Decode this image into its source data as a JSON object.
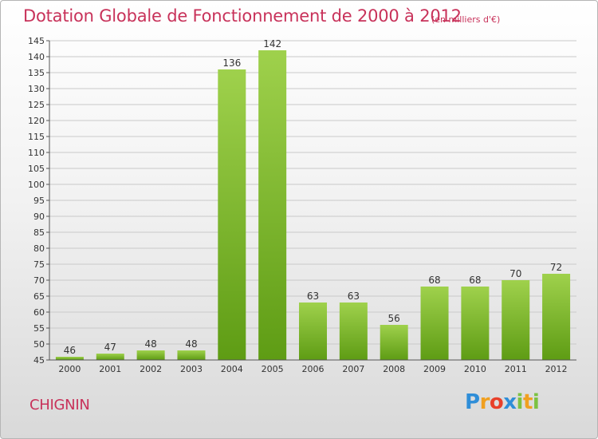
{
  "title": "Dotation Globale de Fonctionnement de 2000 à 2012",
  "unit_note": "(en milliers d'€)",
  "commune": "CHIGNIN",
  "logo": "Proxiti",
  "colors": {
    "accent_text": "#c8325a",
    "bar_light": "#9fd14c",
    "bar_dark": "#5e9c14"
  },
  "chart_data": {
    "type": "bar",
    "categories": [
      "2000",
      "2001",
      "2002",
      "2003",
      "2004",
      "2005",
      "2006",
      "2007",
      "2008",
      "2009",
      "2010",
      "2011",
      "2012"
    ],
    "values": [
      46,
      47,
      48,
      48,
      136,
      142,
      63,
      63,
      56,
      68,
      68,
      70,
      72
    ],
    "ylim": [
      45,
      145
    ],
    "yticks": [
      45,
      50,
      55,
      60,
      65,
      70,
      75,
      80,
      85,
      90,
      95,
      100,
      105,
      110,
      115,
      120,
      125,
      130,
      135,
      140,
      145
    ],
    "grid": true,
    "data_labels": true
  }
}
